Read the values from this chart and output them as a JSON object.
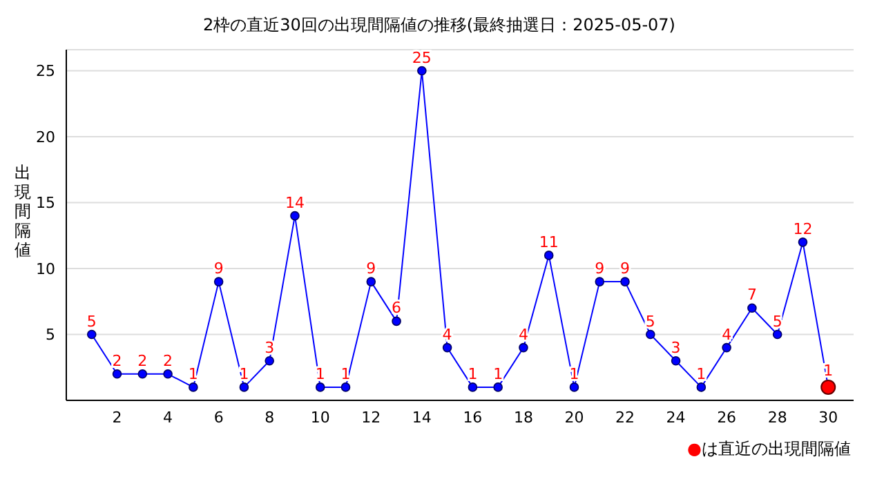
{
  "chart_data": {
    "type": "line",
    "title": "2枠の直近30回の出現間隔値の推移(最終抽選日：2025-05-07)",
    "ylabel": "出現間隔値",
    "annotations": [
      "●は直近の出現間隔値"
    ],
    "x": [
      1,
      2,
      3,
      4,
      5,
      6,
      7,
      8,
      9,
      10,
      11,
      12,
      13,
      14,
      15,
      16,
      17,
      18,
      19,
      20,
      21,
      22,
      23,
      24,
      25,
      26,
      27,
      28,
      29,
      30
    ],
    "series": [
      {
        "color": "#0000ff",
        "values": [
          5,
          2,
          2,
          2,
          1,
          9,
          1,
          3,
          14,
          1,
          1,
          9,
          6,
          25,
          4,
          1,
          1,
          4,
          11,
          1,
          9,
          9,
          5,
          3,
          1,
          4,
          7,
          5,
          12,
          1
        ],
        "value_labels": [
          "5",
          "2",
          "2",
          "2",
          "1",
          "9",
          "1",
          "3",
          "14",
          "1",
          "1",
          "9",
          "6",
          "25",
          "4",
          "1",
          "1",
          "4",
          "11",
          "1",
          "9",
          "9",
          "5",
          "3",
          "1",
          "4",
          "7",
          "5",
          "12",
          null
        ]
      },
      {
        "type": "scatter",
        "color": "#ff0000",
        "x": [
          30
        ],
        "values": [
          1
        ],
        "value_labels": [
          "1"
        ]
      }
    ],
    "xlim": [
      0,
      31
    ],
    "xticks": [
      2,
      4,
      6,
      8,
      10,
      12,
      14,
      16,
      18,
      20,
      22,
      24,
      26,
      28,
      30
    ],
    "ylim": [
      0,
      26.6
    ],
    "yticks": [
      5,
      10,
      15,
      20,
      25
    ],
    "grid": "y",
    "marker": "circle"
  }
}
